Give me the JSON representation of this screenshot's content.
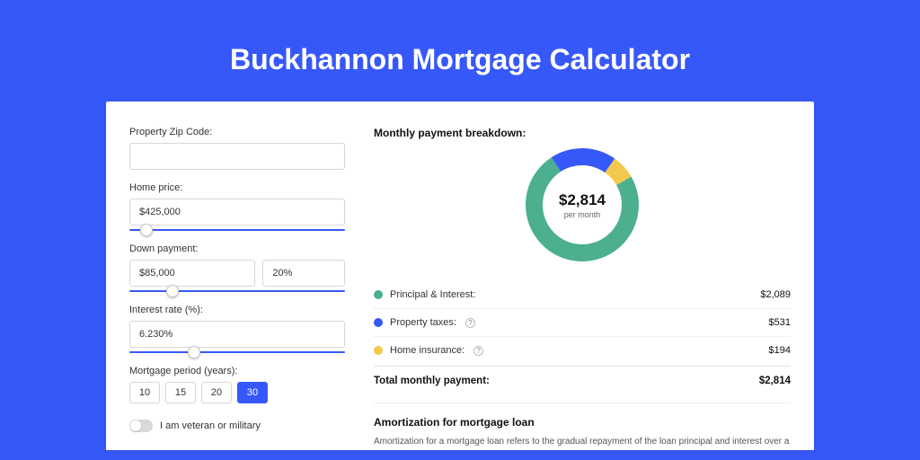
{
  "page": {
    "title": "Buckhannon Mortgage Calculator",
    "bg_color": "#3758f9",
    "card_bg": "#ffffff",
    "title_color": "#ffffff"
  },
  "form": {
    "zip": {
      "label": "Property Zip Code:",
      "value": ""
    },
    "home_price": {
      "label": "Home price:",
      "value": "$425,000",
      "slider_pct": 8
    },
    "down_payment": {
      "label": "Down payment:",
      "value": "$85,000",
      "pct": "20%",
      "slider_pct": 20
    },
    "interest_rate": {
      "label": "Interest rate (%):",
      "value": "6.230%",
      "slider_pct": 30
    },
    "mortgage_period": {
      "label": "Mortgage period (years):",
      "options": [
        "10",
        "15",
        "20",
        "30"
      ],
      "active": "30"
    },
    "veteran": {
      "label": "I am veteran or military",
      "checked": false
    }
  },
  "breakdown": {
    "title": "Monthly payment breakdown:",
    "donut": {
      "amount": "$2,814",
      "sub": "per month",
      "size": 126,
      "thickness": 19,
      "slices": [
        {
          "key": "principal_interest",
          "label": "Principal & Interest:",
          "value": "$2,089",
          "pct": 74.2,
          "color": "#4caf8f"
        },
        {
          "key": "property_taxes",
          "label": "Property taxes:",
          "value": "$531",
          "pct": 18.9,
          "color": "#3758f9",
          "info": true
        },
        {
          "key": "home_insurance",
          "label": "Home insurance:",
          "value": "$194",
          "pct": 6.9,
          "color": "#f2c94c",
          "info": true
        }
      ],
      "start_angle": -30
    },
    "total": {
      "label": "Total monthly payment:",
      "value": "$2,814"
    }
  },
  "amortization": {
    "title": "Amortization for mortgage loan",
    "text": "Amortization for a mortgage loan refers to the gradual repayment of the loan principal and interest over a specified"
  }
}
